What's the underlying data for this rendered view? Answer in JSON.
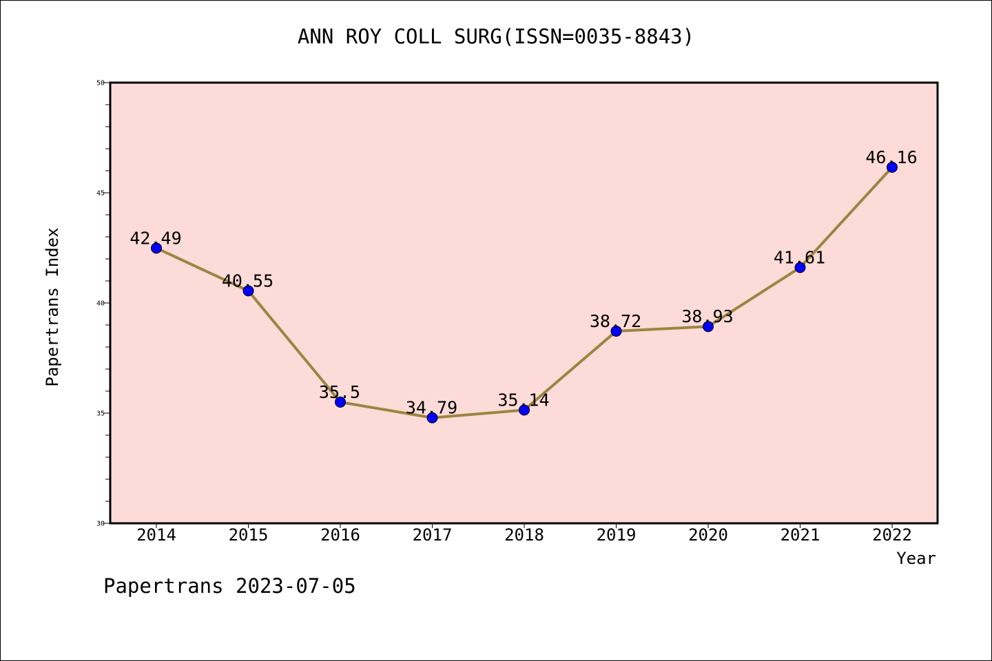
{
  "title": "ANN ROY COLL SURG(ISSN=0035-8843)",
  "footer": "Papertrans 2023-07-05",
  "chart_data": {
    "type": "line",
    "title": "ANN ROY COLL SURG(ISSN=0035-8843)",
    "xlabel": "Year",
    "ylabel": "Papertrans Index",
    "categories": [
      "2014",
      "2015",
      "2016",
      "2017",
      "2018",
      "2019",
      "2020",
      "2021",
      "2022"
    ],
    "series": [
      {
        "values": [
          42.49,
          40.55,
          35.5,
          34.79,
          35.14,
          38.72,
          38.93,
          41.61,
          46.16
        ],
        "labels": [
          "42.49",
          "40.55",
          "35.5",
          "34.79",
          "35.14",
          "38.72",
          "38.93",
          "41.61",
          "46.16"
        ]
      }
    ],
    "ylim": [
      30,
      50
    ],
    "yticks": [
      "30",
      "35",
      "40",
      "45",
      "50"
    ],
    "grid": false,
    "colors": {
      "plot_background": "#fddbd8",
      "line": "#9c8540",
      "marker": "#0000ff"
    }
  }
}
